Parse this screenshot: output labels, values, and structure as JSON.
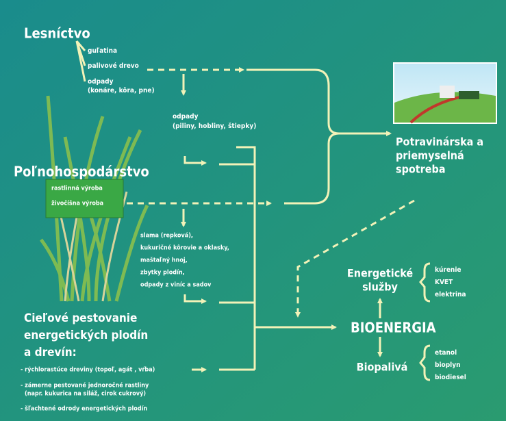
{
  "forestry": {
    "title": "Lesníctvo",
    "items": [
      "guľatina",
      "palivové drevo"
    ],
    "waste": [
      "odpady",
      "(konáre, kôra, pne)"
    ]
  },
  "wood_waste": [
    "odpady",
    "(piliny, hobliny, štiepky)"
  ],
  "consumption": [
    "Potravinárska a",
    "priemyselná",
    "spotreba"
  ],
  "agriculture": {
    "title": "Poľnohospodárstvo",
    "items": [
      "rastlinná výroba",
      "živočíšna výroba"
    ]
  },
  "residues": [
    "slama (repková),",
    "kukuričné kôrovie a oklasky,",
    "maštaľný hnoj,",
    "zbytky plodín,",
    "odpady z viníc a sadov"
  ],
  "energy_services": {
    "title": [
      "Energetické",
      "služby"
    ],
    "items": [
      "kúrenie",
      "KVET",
      "elektrina"
    ]
  },
  "bioenergy": "BIOENERGIA",
  "biofuels": {
    "title": "Biopalivá",
    "items": [
      "etanol",
      "bioplyn",
      "biodiesel"
    ]
  },
  "crops": {
    "title": [
      "Cieľové pestovanie",
      "energetických plodín",
      "a drevín:"
    ],
    "items": [
      [
        "- rýchlorastúce dreviny (topoľ, agát , vŕba)"
      ],
      [
        "- zámerne pestované jednoročné rastliny",
        "(napr. kukurica na siláž, cirok cukrový)"
      ],
      [
        "- šľachtené odrody energetických plodín"
      ]
    ]
  }
}
